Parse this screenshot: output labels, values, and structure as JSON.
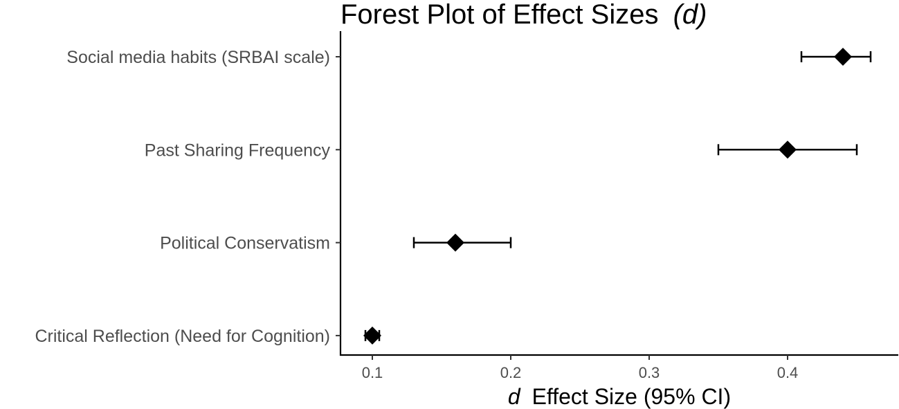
{
  "chart_data": {
    "type": "forest",
    "title": "Forest Plot of Effect Sizes",
    "title_italic": "(d)",
    "xlabel_italic": "d",
    "xlabel": "Effect Size (95% CI)",
    "xlim": [
      0.077,
      0.48
    ],
    "xticks": [
      0.1,
      0.2,
      0.3,
      0.4
    ],
    "xtick_labels": [
      "0.1",
      "0.2",
      "0.3",
      "0.4"
    ],
    "grid": false,
    "marker": "diamond",
    "color": "#000000",
    "categories": [
      "Social media habits (SRBAI scale)",
      "Past Sharing Frequency",
      "Political Conservatism",
      "Critical Reflection (Need for Cognition)"
    ],
    "estimates": [
      0.44,
      0.4,
      0.16,
      0.1
    ],
    "ci_lower": [
      0.41,
      0.35,
      0.13,
      0.095
    ],
    "ci_upper": [
      0.46,
      0.45,
      0.2,
      0.105
    ]
  }
}
